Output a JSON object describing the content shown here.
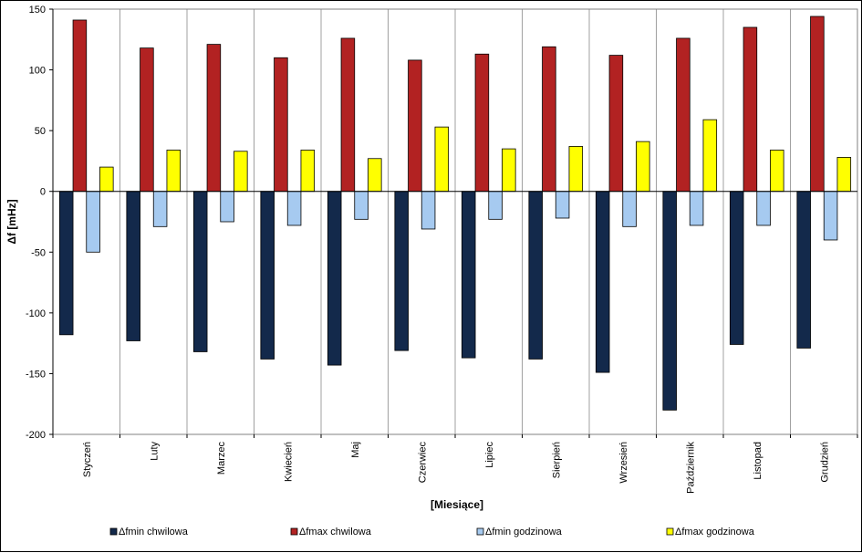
{
  "chart_data": {
    "type": "bar",
    "xlabel": "[Miesiące]",
    "ylabel": "Δf [mHz]",
    "ylim": [
      -200,
      150
    ],
    "yticks": [
      -200,
      -150,
      -100,
      -50,
      0,
      50,
      100,
      150
    ],
    "grid": "vertical category separators",
    "legend_position": "bottom",
    "categories": [
      "Styczeń",
      "Luty",
      "Marzec",
      "Kwiecień",
      "Maj",
      "Czerwiec",
      "Lipiec",
      "Sierpień",
      "Wrzesień",
      "Październik",
      "Listopad",
      "Grudzień"
    ],
    "series": [
      {
        "name": "Δfmin chwilowa",
        "color": "#13294b",
        "values": [
          -118,
          -123,
          -132,
          -138,
          -143,
          -131,
          -137,
          -138,
          -149,
          -180,
          -126,
          -129
        ]
      },
      {
        "name": "Δfmax chwilowa",
        "color": "#b22222",
        "values": [
          141,
          118,
          121,
          110,
          126,
          108,
          113,
          119,
          112,
          126,
          135,
          144
        ]
      },
      {
        "name": "Δfmin godzinowa",
        "color": "#a6caf0",
        "values": [
          -50,
          -29,
          -25,
          -28,
          -23,
          -31,
          -23,
          -22,
          -29,
          -28,
          -28,
          -40
        ]
      },
      {
        "name": "Δfmax godzinowa",
        "color": "#ffff00",
        "values": [
          20,
          34,
          33,
          34,
          27,
          53,
          35,
          37,
          41,
          59,
          34,
          28
        ]
      }
    ]
  }
}
